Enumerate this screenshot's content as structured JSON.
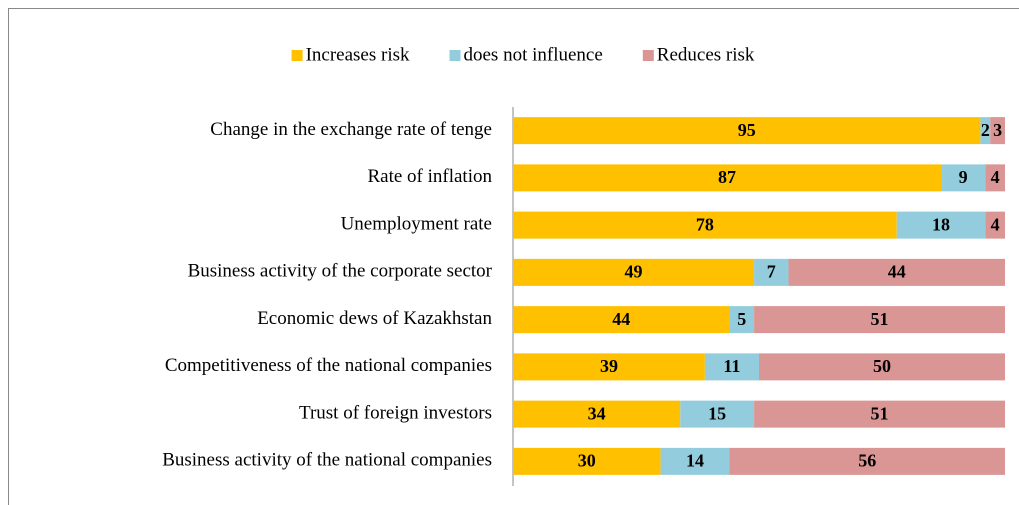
{
  "chart_data": {
    "type": "stacked-bar-horizontal",
    "categories": [
      "Change in the exchange rate of tenge",
      "Rate of inflation",
      "Unemployment rate",
      "Business activity of the corporate sector",
      "Economic dews of Kazakhstan",
      "Competitiveness of the national companies",
      "Trust of foreign investors",
      "Business activity of the national companies"
    ],
    "series": [
      {
        "name": "Increases risk",
        "color": "#ffc000",
        "values": [
          95,
          87,
          78,
          49,
          44,
          39,
          34,
          30
        ]
      },
      {
        "name": "does not influence",
        "color": "#93cddd",
        "values": [
          2,
          9,
          18,
          7,
          5,
          11,
          15,
          14
        ]
      },
      {
        "name": "Reduces risk",
        "color": "#d99694",
        "values": [
          3,
          4,
          4,
          44,
          51,
          50,
          51,
          56
        ]
      }
    ],
    "xlim": [
      0,
      100
    ],
    "legend": "top"
  }
}
